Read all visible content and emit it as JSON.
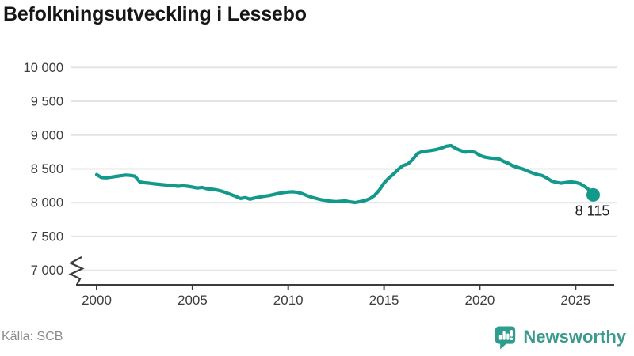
{
  "title": "Befolkningsutveckling i Lessebo",
  "source": "Källa: SCB",
  "brand": {
    "name": "Newsworthy",
    "bubble_color": "#2f9d8e",
    "text_color": "#3a9a8b"
  },
  "chart_data": {
    "type": "line",
    "title": "Befolkningsutveckling i Lessebo",
    "xlabel": "",
    "ylabel": "",
    "grid": "horizontal",
    "axis_break_at_bottom": true,
    "xlim": [
      1998.7,
      2027
    ],
    "ylim": [
      7000,
      10000
    ],
    "x_ticks": [
      2000,
      2005,
      2010,
      2015,
      2020,
      2025
    ],
    "x_tick_labels": [
      "2000",
      "2005",
      "2010",
      "2015",
      "2020",
      "2025"
    ],
    "y_ticks": [
      10000,
      9500,
      9000,
      8500,
      8000,
      7500,
      7000
    ],
    "y_tick_labels": [
      "10 000",
      "9 500",
      "9 000",
      "8 500",
      "8 000",
      "7 500",
      "7 000"
    ],
    "end_label": "8 115",
    "end_value": 8115,
    "colors": {
      "grid": "#e4e4e4",
      "axis": "#3c3c3c",
      "axis_text": "#3d3d3d",
      "label_text": "#1d1d1d"
    },
    "series": [
      {
        "name": "Befolkning i Lessebo",
        "color": "#12998b",
        "points": [
          [
            2000.0,
            8415
          ],
          [
            2000.25,
            8372
          ],
          [
            2000.5,
            8368
          ],
          [
            2000.75,
            8378
          ],
          [
            2001.0,
            8388
          ],
          [
            2001.25,
            8398
          ],
          [
            2001.5,
            8408
          ],
          [
            2001.75,
            8404
          ],
          [
            2002.0,
            8392
          ],
          [
            2002.25,
            8305
          ],
          [
            2002.5,
            8295
          ],
          [
            2002.75,
            8288
          ],
          [
            2003.0,
            8278
          ],
          [
            2003.25,
            8272
          ],
          [
            2003.5,
            8265
          ],
          [
            2003.75,
            8258
          ],
          [
            2004.0,
            8252
          ],
          [
            2004.25,
            8242
          ],
          [
            2004.5,
            8250
          ],
          [
            2004.75,
            8242
          ],
          [
            2005.0,
            8232
          ],
          [
            2005.25,
            8216
          ],
          [
            2005.5,
            8226
          ],
          [
            2005.75,
            8206
          ],
          [
            2006.0,
            8200
          ],
          [
            2006.25,
            8188
          ],
          [
            2006.5,
            8172
          ],
          [
            2006.75,
            8150
          ],
          [
            2007.0,
            8122
          ],
          [
            2007.25,
            8095
          ],
          [
            2007.5,
            8062
          ],
          [
            2007.75,
            8075
          ],
          [
            2008.0,
            8052
          ],
          [
            2008.25,
            8070
          ],
          [
            2008.5,
            8082
          ],
          [
            2008.75,
            8095
          ],
          [
            2009.0,
            8105
          ],
          [
            2009.25,
            8122
          ],
          [
            2009.5,
            8138
          ],
          [
            2009.75,
            8150
          ],
          [
            2010.0,
            8158
          ],
          [
            2010.25,
            8162
          ],
          [
            2010.5,
            8152
          ],
          [
            2010.75,
            8132
          ],
          [
            2011.0,
            8102
          ],
          [
            2011.25,
            8078
          ],
          [
            2011.5,
            8060
          ],
          [
            2011.75,
            8042
          ],
          [
            2012.0,
            8030
          ],
          [
            2012.25,
            8022
          ],
          [
            2012.5,
            8016
          ],
          [
            2012.75,
            8022
          ],
          [
            2013.0,
            8026
          ],
          [
            2013.25,
            8012
          ],
          [
            2013.5,
            8002
          ],
          [
            2013.75,
            8016
          ],
          [
            2014.0,
            8030
          ],
          [
            2014.25,
            8058
          ],
          [
            2014.5,
            8105
          ],
          [
            2014.75,
            8185
          ],
          [
            2015.0,
            8290
          ],
          [
            2015.25,
            8365
          ],
          [
            2015.5,
            8425
          ],
          [
            2015.75,
            8495
          ],
          [
            2016.0,
            8550
          ],
          [
            2016.25,
            8572
          ],
          [
            2016.5,
            8640
          ],
          [
            2016.75,
            8725
          ],
          [
            2017.0,
            8758
          ],
          [
            2017.25,
            8765
          ],
          [
            2017.5,
            8775
          ],
          [
            2017.75,
            8788
          ],
          [
            2018.0,
            8808
          ],
          [
            2018.25,
            8835
          ],
          [
            2018.5,
            8845
          ],
          [
            2018.75,
            8802
          ],
          [
            2019.0,
            8772
          ],
          [
            2019.25,
            8748
          ],
          [
            2019.5,
            8760
          ],
          [
            2019.75,
            8745
          ],
          [
            2020.0,
            8700
          ],
          [
            2020.25,
            8675
          ],
          [
            2020.5,
            8662
          ],
          [
            2020.75,
            8655
          ],
          [
            2021.0,
            8648
          ],
          [
            2021.25,
            8610
          ],
          [
            2021.5,
            8582
          ],
          [
            2021.75,
            8540
          ],
          [
            2022.0,
            8520
          ],
          [
            2022.25,
            8498
          ],
          [
            2022.5,
            8468
          ],
          [
            2022.75,
            8440
          ],
          [
            2023.0,
            8418
          ],
          [
            2023.25,
            8402
          ],
          [
            2023.5,
            8365
          ],
          [
            2023.75,
            8320
          ],
          [
            2024.0,
            8300
          ],
          [
            2024.25,
            8288
          ],
          [
            2024.5,
            8298
          ],
          [
            2024.75,
            8308
          ],
          [
            2025.0,
            8298
          ],
          [
            2025.25,
            8280
          ],
          [
            2025.5,
            8235
          ],
          [
            2025.75,
            8180
          ],
          [
            2025.92,
            8115
          ]
        ]
      }
    ]
  }
}
